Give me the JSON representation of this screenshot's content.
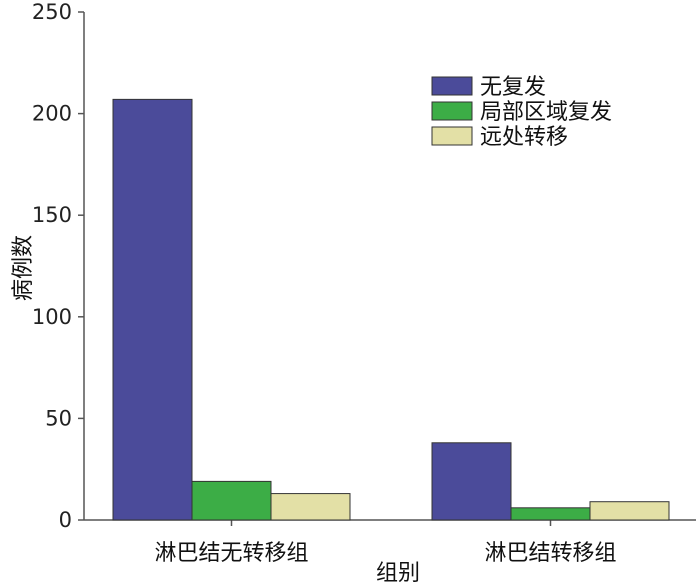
{
  "chart_data": {
    "type": "bar",
    "title": "",
    "xlabel": "组别",
    "ylabel": "病例数",
    "ylim": [
      0,
      250
    ],
    "yticks": [
      0,
      50,
      100,
      150,
      200,
      250
    ],
    "categories": [
      "淋巴结无转移组",
      "淋巴结转移组"
    ],
    "series": [
      {
        "name": "无复发",
        "values": [
          207,
          38
        ],
        "color": "#4b4b9a"
      },
      {
        "name": "局部区域复发",
        "values": [
          19,
          6
        ],
        "color": "#3cad46"
      },
      {
        "name": "远处转移",
        "values": [
          13,
          9
        ],
        "color": "#e3e0a6"
      }
    ],
    "legend_position": "top-right",
    "grid": false
  }
}
